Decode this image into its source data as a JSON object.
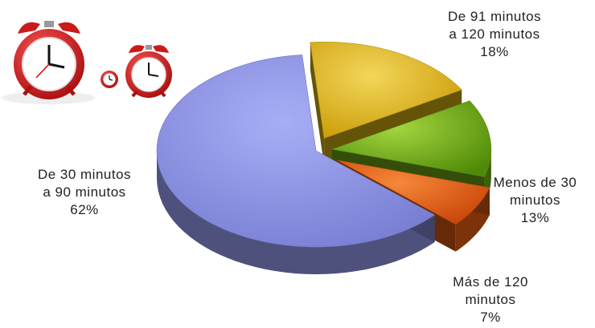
{
  "chart_data": {
    "type": "pie",
    "style": "3d-exploded",
    "title": "",
    "slices": [
      {
        "label_lines": [
          "De 91 minutos",
          "a 120 minutos"
        ],
        "value_label": "18%",
        "value": 18,
        "color": "#e0b90f"
      },
      {
        "label_lines": [
          "Menos de 30",
          "minutos"
        ],
        "value_label": "13%",
        "value": 13,
        "color": "#6fae12"
      },
      {
        "label_lines": [
          "Más de 120",
          "minutos"
        ],
        "value_label": "7%",
        "value": 7,
        "color": "#e35d12"
      },
      {
        "label_lines": [
          "De 30 minutos",
          "a 90 minutos"
        ],
        "value_label": "62%",
        "value": 62,
        "color": "#8c93e2"
      }
    ],
    "legend": "none"
  },
  "decoration": {
    "icon": "alarm-clocks-icon",
    "clock_color": "#d81e1e"
  }
}
